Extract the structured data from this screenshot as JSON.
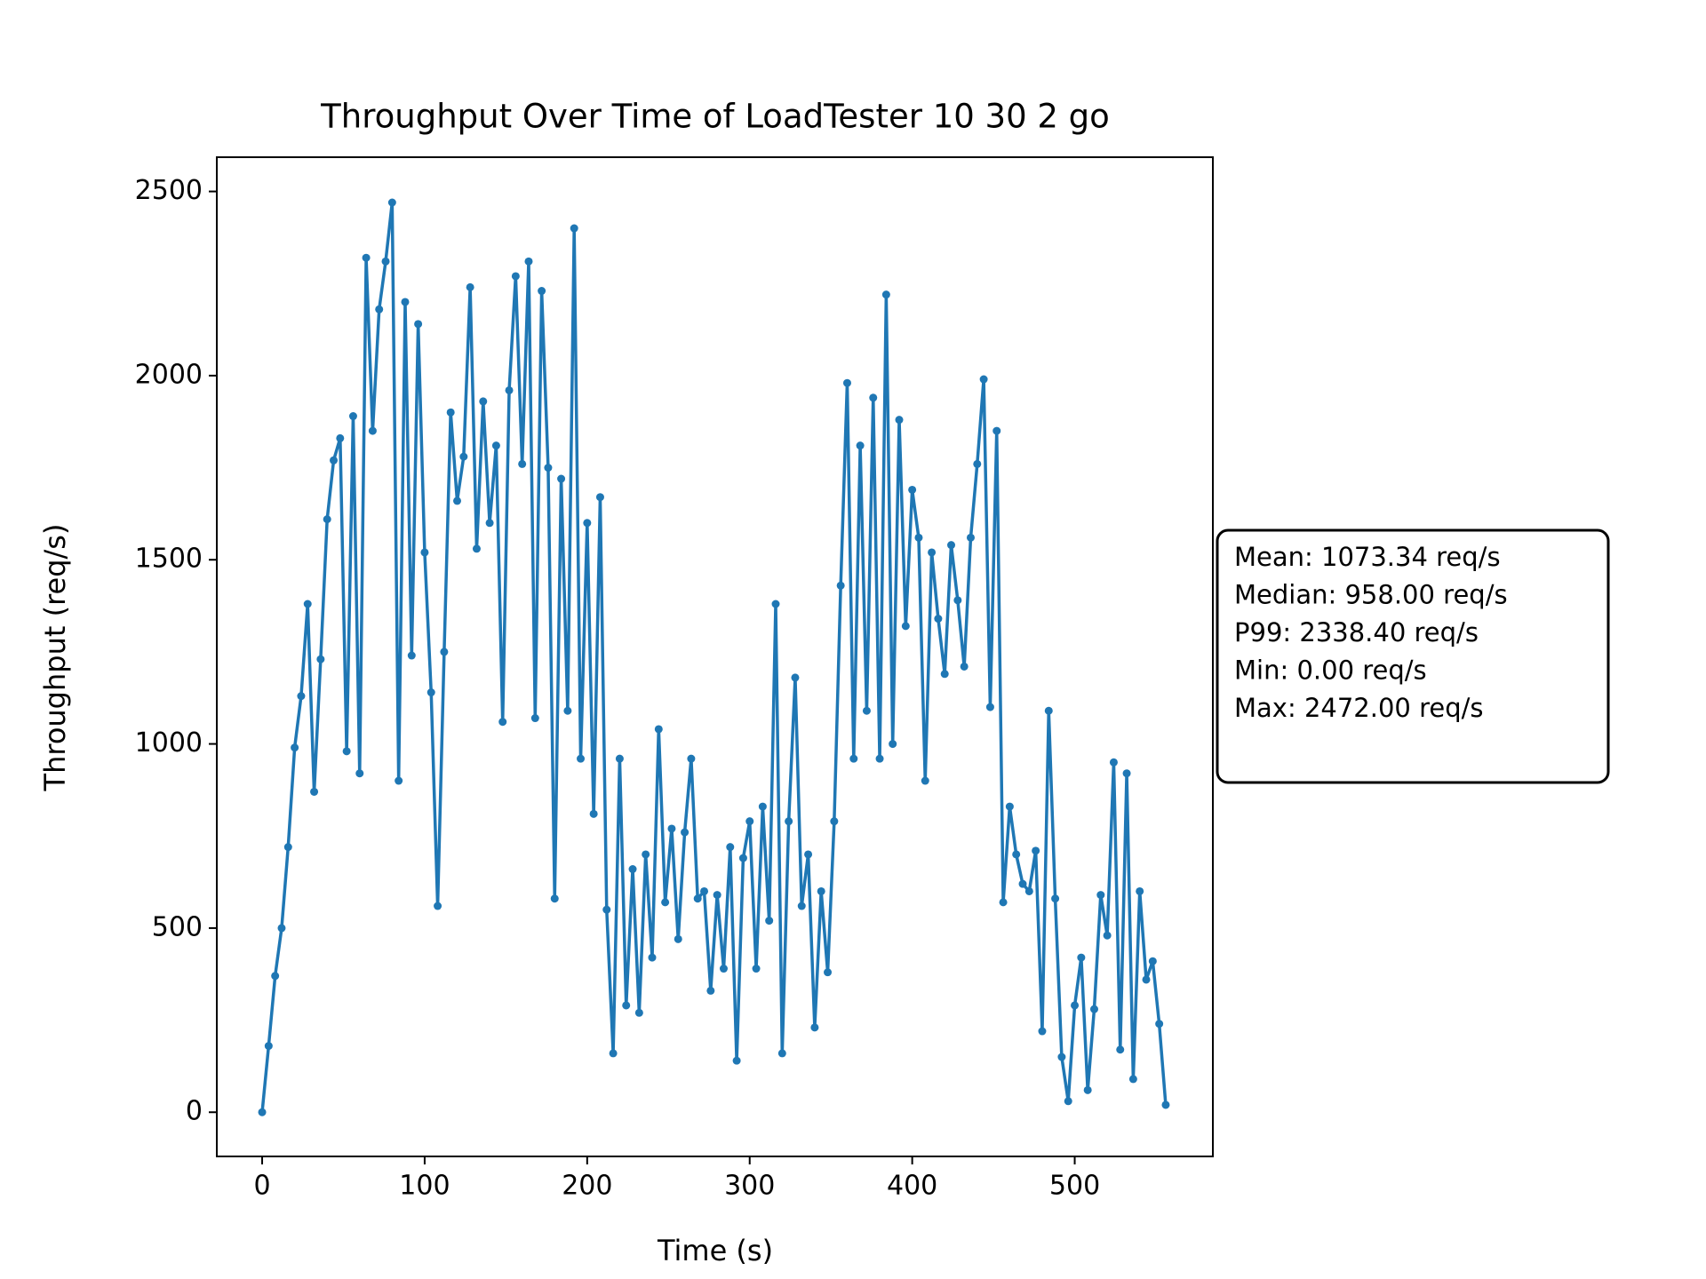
{
  "chart_data": {
    "type": "line",
    "title": "Throughput Over Time of LoadTester 10 30 2 go",
    "x_label": "Time (s)",
    "y_label": "Throughput (req/s)",
    "x": [
      0,
      4,
      8,
      12,
      16,
      20,
      24,
      28,
      32,
      36,
      40,
      44,
      48,
      52,
      56,
      60,
      64,
      68,
      72,
      76,
      80,
      84,
      88,
      92,
      96,
      100,
      104,
      108,
      112,
      116,
      120,
      124,
      128,
      132,
      136,
      140,
      144,
      148,
      152,
      156,
      160,
      164,
      168,
      172,
      176,
      180,
      184,
      188,
      192,
      196,
      200,
      204,
      208,
      212,
      216,
      220,
      224,
      228,
      232,
      236,
      240,
      244,
      248,
      252,
      256,
      260,
      264,
      268,
      272,
      276,
      280,
      284,
      288,
      292,
      296,
      300,
      304,
      308,
      312,
      316,
      320,
      324,
      328,
      332,
      336,
      340,
      344,
      348,
      352,
      356,
      360,
      364,
      368,
      372,
      376,
      380,
      384,
      388,
      392,
      396,
      400,
      404,
      408,
      412,
      416,
      420,
      424,
      428,
      432,
      436,
      440,
      444,
      448,
      452,
      456,
      460,
      464,
      468,
      472,
      476,
      480,
      484,
      488,
      492,
      496,
      500,
      504,
      508,
      512,
      516,
      520,
      524,
      528,
      532,
      536,
      540,
      544,
      548,
      552,
      556
    ],
    "series": [
      {
        "name": "Throughput",
        "color": "#1f77b4",
        "values": [
          0,
          180,
          370,
          500,
          720,
          990,
          1130,
          1380,
          870,
          1230,
          1610,
          1770,
          1830,
          980,
          1890,
          920,
          2320,
          1850,
          2180,
          2310,
          2470,
          900,
          2200,
          1240,
          2140,
          1520,
          1140,
          560,
          1250,
          1900,
          1660,
          1780,
          2240,
          1530,
          1930,
          1600,
          1810,
          1060,
          1960,
          2270,
          1760,
          2310,
          1070,
          2230,
          1750,
          580,
          1720,
          1090,
          2400,
          960,
          1600,
          810,
          1670,
          550,
          160,
          960,
          290,
          660,
          270,
          700,
          420,
          1040,
          570,
          770,
          470,
          760,
          960,
          580,
          600,
          330,
          590,
          390,
          720,
          140,
          690,
          790,
          390,
          830,
          520,
          1380,
          160,
          790,
          1180,
          560,
          700,
          230,
          600,
          380,
          790,
          1430,
          1980,
          960,
          1810,
          1090,
          1940,
          960,
          2220,
          1000,
          1880,
          1320,
          1690,
          1560,
          900,
          1520,
          1340,
          1190,
          1540,
          1390,
          1210,
          1560,
          1760,
          1990,
          1100,
          1850,
          570,
          830,
          700,
          620,
          600,
          710,
          220,
          1090,
          580,
          150,
          30,
          290,
          420,
          60,
          280,
          590,
          480,
          950,
          170,
          920,
          90,
          600,
          360,
          410,
          240,
          20
        ]
      }
    ],
    "xlim": [
      -27.9,
      585
    ],
    "ylim": [
      -120,
      2593
    ],
    "xticks": [
      0,
      100,
      200,
      300,
      400,
      500
    ],
    "yticks": [
      0,
      500,
      1000,
      1500,
      2000,
      2500
    ],
    "stats_box": [
      "Mean: 1073.34 req/s",
      "Median: 958.00 req/s",
      "P99: 2338.40 req/s",
      "Min: 0.00 req/s",
      "Max: 2472.00 req/s"
    ]
  }
}
